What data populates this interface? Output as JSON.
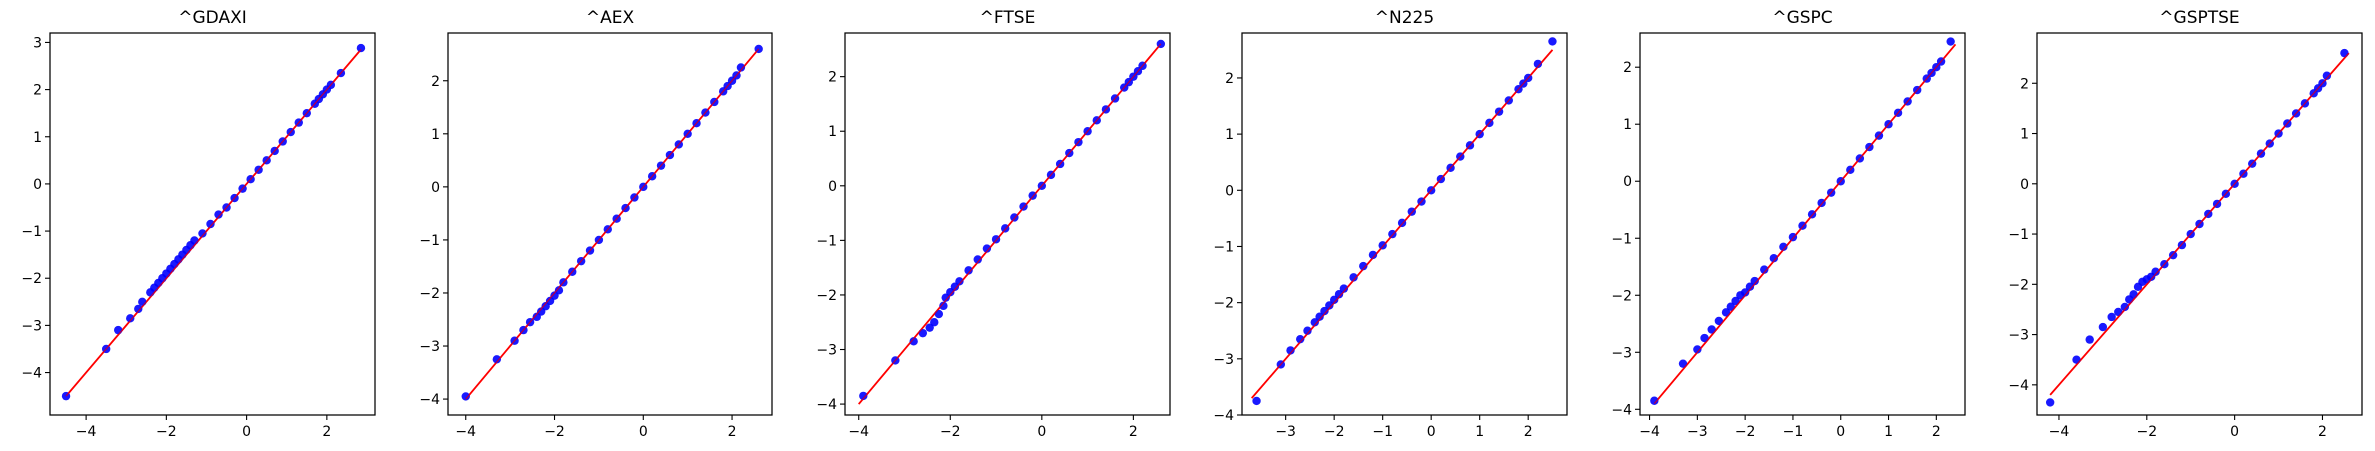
{
  "chart_data": [
    {
      "type": "scatter",
      "title": "^GDAXI",
      "xlabel": "",
      "ylabel": "",
      "xlim": [
        -4.9,
        3.2
      ],
      "ylim": [
        -4.9,
        3.2
      ],
      "xticks": [
        -4,
        -2,
        0,
        2
      ],
      "xtick_labels": [
        "−4",
        "−2",
        "0",
        "2"
      ],
      "yticks": [
        -4,
        -3,
        -2,
        -1,
        0,
        1,
        2,
        3
      ],
      "ytick_labels": [
        "−4",
        "−3",
        "−2",
        "−1",
        "0",
        "1",
        "2",
        "3"
      ],
      "marker_color": "#0000ff",
      "line_color": "#ff0000",
      "fit_line": {
        "x": [
          -4.5,
          2.85
        ],
        "y": [
          -4.5,
          2.85
        ]
      },
      "points": [
        [
          -4.5,
          -4.5
        ],
        [
          -3.5,
          -3.5
        ],
        [
          -3.2,
          -3.1
        ],
        [
          -2.9,
          -2.85
        ],
        [
          -2.7,
          -2.65
        ],
        [
          -2.6,
          -2.5
        ],
        [
          -2.4,
          -2.3
        ],
        [
          -2.3,
          -2.2
        ],
        [
          -2.2,
          -2.1
        ],
        [
          -2.1,
          -2.0
        ],
        [
          -2.0,
          -1.9
        ],
        [
          -1.9,
          -1.8
        ],
        [
          -1.8,
          -1.7
        ],
        [
          -1.7,
          -1.6
        ],
        [
          -1.6,
          -1.5
        ],
        [
          -1.5,
          -1.4
        ],
        [
          -1.4,
          -1.3
        ],
        [
          -1.3,
          -1.2
        ],
        [
          -1.1,
          -1.05
        ],
        [
          -0.9,
          -0.85
        ],
        [
          -0.7,
          -0.65
        ],
        [
          -0.5,
          -0.5
        ],
        [
          -0.3,
          -0.3
        ],
        [
          -0.1,
          -0.1
        ],
        [
          0.1,
          0.1
        ],
        [
          0.3,
          0.3
        ],
        [
          0.5,
          0.5
        ],
        [
          0.7,
          0.7
        ],
        [
          0.9,
          0.9
        ],
        [
          1.1,
          1.1
        ],
        [
          1.3,
          1.3
        ],
        [
          1.5,
          1.5
        ],
        [
          1.7,
          1.7
        ],
        [
          1.8,
          1.8
        ],
        [
          1.9,
          1.9
        ],
        [
          2.0,
          2.0
        ],
        [
          2.1,
          2.1
        ],
        [
          2.35,
          2.35
        ],
        [
          2.85,
          2.88
        ]
      ]
    },
    {
      "type": "scatter",
      "title": "^AEX",
      "xlabel": "",
      "ylabel": "",
      "xlim": [
        -4.4,
        2.9
      ],
      "ylim": [
        -4.3,
        2.9
      ],
      "xticks": [
        -4,
        -2,
        0,
        2
      ],
      "xtick_labels": [
        "−4",
        "−2",
        "0",
        "2"
      ],
      "yticks": [
        -4,
        -3,
        -2,
        -1,
        0,
        1,
        2
      ],
      "ytick_labels": [
        "−4",
        "−3",
        "−2",
        "−1",
        "0",
        "1",
        "2"
      ],
      "marker_color": "#0000ff",
      "line_color": "#ff0000",
      "fit_line": {
        "x": [
          -4.0,
          2.6
        ],
        "y": [
          -4.0,
          2.6
        ]
      },
      "points": [
        [
          -4.0,
          -3.95
        ],
        [
          -3.3,
          -3.25
        ],
        [
          -2.9,
          -2.9
        ],
        [
          -2.7,
          -2.7
        ],
        [
          -2.55,
          -2.55
        ],
        [
          -2.4,
          -2.45
        ],
        [
          -2.3,
          -2.35
        ],
        [
          -2.2,
          -2.25
        ],
        [
          -2.1,
          -2.15
        ],
        [
          -2.0,
          -2.05
        ],
        [
          -1.9,
          -1.95
        ],
        [
          -1.8,
          -1.8
        ],
        [
          -1.6,
          -1.6
        ],
        [
          -1.4,
          -1.4
        ],
        [
          -1.2,
          -1.2
        ],
        [
          -1.0,
          -1.0
        ],
        [
          -0.8,
          -0.8
        ],
        [
          -0.6,
          -0.6
        ],
        [
          -0.4,
          -0.4
        ],
        [
          -0.2,
          -0.2
        ],
        [
          0.0,
          0.0
        ],
        [
          0.2,
          0.2
        ],
        [
          0.4,
          0.4
        ],
        [
          0.6,
          0.6
        ],
        [
          0.8,
          0.8
        ],
        [
          1.0,
          1.0
        ],
        [
          1.2,
          1.2
        ],
        [
          1.4,
          1.4
        ],
        [
          1.6,
          1.6
        ],
        [
          1.8,
          1.8
        ],
        [
          1.9,
          1.9
        ],
        [
          2.0,
          2.0
        ],
        [
          2.1,
          2.1
        ],
        [
          2.2,
          2.25
        ],
        [
          2.6,
          2.6
        ]
      ]
    },
    {
      "type": "scatter",
      "title": "^FTSE",
      "xlabel": "",
      "ylabel": "",
      "xlim": [
        -4.3,
        2.8
      ],
      "ylim": [
        -4.2,
        2.8
      ],
      "xticks": [
        -4,
        -2,
        0,
        2
      ],
      "xtick_labels": [
        "−4",
        "−2",
        "0",
        "2"
      ],
      "yticks": [
        -4,
        -3,
        -2,
        -1,
        0,
        1,
        2
      ],
      "ytick_labels": [
        "−4",
        "−3",
        "−2",
        "−1",
        "0",
        "1",
        "2"
      ],
      "marker_color": "#0000ff",
      "line_color": "#ff0000",
      "fit_line": {
        "x": [
          -4.0,
          2.6
        ],
        "y": [
          -4.0,
          2.6
        ]
      },
      "points": [
        [
          -3.9,
          -3.85
        ],
        [
          -3.2,
          -3.2
        ],
        [
          -2.8,
          -2.85
        ],
        [
          -2.6,
          -2.7
        ],
        [
          -2.45,
          -2.6
        ],
        [
          -2.35,
          -2.5
        ],
        [
          -2.25,
          -2.35
        ],
        [
          -2.15,
          -2.2
        ],
        [
          -2.1,
          -2.05
        ],
        [
          -2.0,
          -1.95
        ],
        [
          -1.9,
          -1.85
        ],
        [
          -1.8,
          -1.75
        ],
        [
          -1.6,
          -1.55
        ],
        [
          -1.4,
          -1.35
        ],
        [
          -1.2,
          -1.15
        ],
        [
          -1.0,
          -0.98
        ],
        [
          -0.8,
          -0.78
        ],
        [
          -0.6,
          -0.58
        ],
        [
          -0.4,
          -0.38
        ],
        [
          -0.2,
          -0.18
        ],
        [
          0.0,
          0.0
        ],
        [
          0.2,
          0.2
        ],
        [
          0.4,
          0.4
        ],
        [
          0.6,
          0.6
        ],
        [
          0.8,
          0.8
        ],
        [
          1.0,
          1.0
        ],
        [
          1.2,
          1.2
        ],
        [
          1.4,
          1.4
        ],
        [
          1.6,
          1.6
        ],
        [
          1.8,
          1.8
        ],
        [
          1.9,
          1.9
        ],
        [
          2.0,
          2.0
        ],
        [
          2.1,
          2.1
        ],
        [
          2.2,
          2.2
        ],
        [
          2.6,
          2.6
        ]
      ]
    },
    {
      "type": "scatter",
      "title": "^N225",
      "xlabel": "",
      "ylabel": "",
      "xlim": [
        -3.9,
        2.8
      ],
      "ylim": [
        -4.0,
        2.8
      ],
      "xticks": [
        -3,
        -2,
        -1,
        0,
        1,
        2
      ],
      "xtick_labels": [
        "−3",
        "−2",
        "−1",
        "0",
        "1",
        "2"
      ],
      "yticks": [
        -4,
        -3,
        -2,
        -1,
        0,
        1,
        2
      ],
      "ytick_labels": [
        "−4",
        "−3",
        "−2",
        "−1",
        "0",
        "1",
        "2"
      ],
      "marker_color": "#0000ff",
      "line_color": "#ff0000",
      "fit_line": {
        "x": [
          -3.7,
          2.5
        ],
        "y": [
          -3.7,
          2.5
        ]
      },
      "points": [
        [
          -3.6,
          -3.75
        ],
        [
          -3.1,
          -3.1
        ],
        [
          -2.9,
          -2.85
        ],
        [
          -2.7,
          -2.65
        ],
        [
          -2.55,
          -2.5
        ],
        [
          -2.4,
          -2.35
        ],
        [
          -2.3,
          -2.25
        ],
        [
          -2.2,
          -2.15
        ],
        [
          -2.1,
          -2.05
        ],
        [
          -2.0,
          -1.95
        ],
        [
          -1.9,
          -1.85
        ],
        [
          -1.8,
          -1.75
        ],
        [
          -1.6,
          -1.55
        ],
        [
          -1.4,
          -1.35
        ],
        [
          -1.2,
          -1.15
        ],
        [
          -1.0,
          -0.98
        ],
        [
          -0.8,
          -0.78
        ],
        [
          -0.6,
          -0.58
        ],
        [
          -0.4,
          -0.38
        ],
        [
          -0.2,
          -0.2
        ],
        [
          0.0,
          0.0
        ],
        [
          0.2,
          0.2
        ],
        [
          0.4,
          0.4
        ],
        [
          0.6,
          0.6
        ],
        [
          0.8,
          0.8
        ],
        [
          1.0,
          1.0
        ],
        [
          1.2,
          1.2
        ],
        [
          1.4,
          1.4
        ],
        [
          1.6,
          1.6
        ],
        [
          1.8,
          1.8
        ],
        [
          1.9,
          1.9
        ],
        [
          2.0,
          2.0
        ],
        [
          2.2,
          2.25
        ],
        [
          2.5,
          2.65
        ]
      ]
    },
    {
      "type": "scatter",
      "title": "^GSPC",
      "xlabel": "",
      "ylabel": "",
      "xlim": [
        -4.2,
        2.6
      ],
      "ylim": [
        -4.1,
        2.6
      ],
      "xticks": [
        -4,
        -3,
        -2,
        -1,
        0,
        1,
        2
      ],
      "xtick_labels": [
        "−4",
        "−3",
        "−2",
        "−1",
        "0",
        "1",
        "2"
      ],
      "yticks": [
        -4,
        -3,
        -2,
        -1,
        0,
        1,
        2
      ],
      "ytick_labels": [
        "−4",
        "−3",
        "−2",
        "−1",
        "0",
        "1",
        "2"
      ],
      "marker_color": "#0000ff",
      "line_color": "#ff0000",
      "fit_line": {
        "x": [
          -3.9,
          2.4
        ],
        "y": [
          -3.9,
          2.4
        ]
      },
      "points": [
        [
          -3.9,
          -3.85
        ],
        [
          -3.3,
          -3.2
        ],
        [
          -3.0,
          -2.95
        ],
        [
          -2.85,
          -2.75
        ],
        [
          -2.7,
          -2.6
        ],
        [
          -2.55,
          -2.45
        ],
        [
          -2.4,
          -2.3
        ],
        [
          -2.3,
          -2.2
        ],
        [
          -2.2,
          -2.1
        ],
        [
          -2.1,
          -2.0
        ],
        [
          -2.0,
          -1.95
        ],
        [
          -1.9,
          -1.85
        ],
        [
          -1.8,
          -1.75
        ],
        [
          -1.6,
          -1.55
        ],
        [
          -1.4,
          -1.35
        ],
        [
          -1.2,
          -1.15
        ],
        [
          -1.0,
          -0.98
        ],
        [
          -0.8,
          -0.78
        ],
        [
          -0.6,
          -0.58
        ],
        [
          -0.4,
          -0.38
        ],
        [
          -0.2,
          -0.2
        ],
        [
          0.0,
          0.0
        ],
        [
          0.2,
          0.2
        ],
        [
          0.4,
          0.4
        ],
        [
          0.6,
          0.6
        ],
        [
          0.8,
          0.8
        ],
        [
          1.0,
          1.0
        ],
        [
          1.2,
          1.2
        ],
        [
          1.4,
          1.4
        ],
        [
          1.6,
          1.6
        ],
        [
          1.8,
          1.8
        ],
        [
          1.9,
          1.9
        ],
        [
          2.0,
          2.0
        ],
        [
          2.1,
          2.1
        ],
        [
          2.3,
          2.45
        ]
      ]
    },
    {
      "type": "scatter",
      "title": "^GSPTSE",
      "xlabel": "",
      "ylabel": "",
      "xlim": [
        -4.5,
        2.9
      ],
      "ylim": [
        -4.6,
        3.0
      ],
      "xticks": [
        -4,
        -2,
        0,
        2
      ],
      "xtick_labels": [
        "−4",
        "−2",
        "0",
        "2"
      ],
      "yticks": [
        -4,
        -3,
        -2,
        -1,
        0,
        1,
        2
      ],
      "ytick_labels": [
        "−4",
        "−3",
        "−2",
        "−1",
        "0",
        "1",
        "2"
      ],
      "marker_color": "#0000ff",
      "line_color": "#ff0000",
      "fit_line": {
        "x": [
          -4.2,
          2.6
        ],
        "y": [
          -4.2,
          2.6
        ]
      },
      "points": [
        [
          -4.2,
          -4.35
        ],
        [
          -3.6,
          -3.5
        ],
        [
          -3.3,
          -3.1
        ],
        [
          -3.0,
          -2.85
        ],
        [
          -2.8,
          -2.65
        ],
        [
          -2.65,
          -2.55
        ],
        [
          -2.5,
          -2.45
        ],
        [
          -2.4,
          -2.3
        ],
        [
          -2.3,
          -2.2
        ],
        [
          -2.2,
          -2.05
        ],
        [
          -2.1,
          -1.95
        ],
        [
          -2.0,
          -1.9
        ],
        [
          -1.9,
          -1.85
        ],
        [
          -1.8,
          -1.75
        ],
        [
          -1.6,
          -1.6
        ],
        [
          -1.4,
          -1.42
        ],
        [
          -1.2,
          -1.22
        ],
        [
          -1.0,
          -1.0
        ],
        [
          -0.8,
          -0.8
        ],
        [
          -0.6,
          -0.6
        ],
        [
          -0.4,
          -0.4
        ],
        [
          -0.2,
          -0.2
        ],
        [
          0.0,
          0.0
        ],
        [
          0.2,
          0.2
        ],
        [
          0.4,
          0.4
        ],
        [
          0.6,
          0.6
        ],
        [
          0.8,
          0.8
        ],
        [
          1.0,
          1.0
        ],
        [
          1.2,
          1.2
        ],
        [
          1.4,
          1.4
        ],
        [
          1.6,
          1.6
        ],
        [
          1.8,
          1.8
        ],
        [
          1.9,
          1.9
        ],
        [
          2.0,
          2.0
        ],
        [
          2.1,
          2.15
        ],
        [
          2.5,
          2.6
        ]
      ]
    }
  ]
}
